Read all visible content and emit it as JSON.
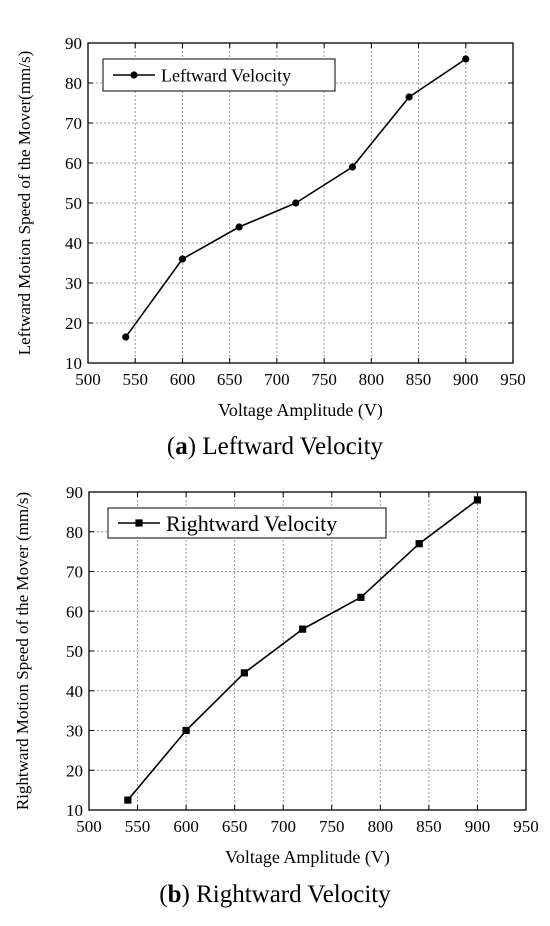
{
  "chart_data": [
    {
      "type": "line",
      "panel": "a",
      "caption": {
        "letter": "a",
        "text": " Leftward Velocity"
      },
      "xlabel": "Voltage Amplitude (V)",
      "ylabel": "Leftward Motion Speed of the Mover(mm/s)",
      "xlim": [
        500,
        950
      ],
      "ylim": [
        10,
        90
      ],
      "x_ticks": [
        500,
        550,
        600,
        650,
        700,
        750,
        800,
        850,
        900,
        950
      ],
      "y_ticks": [
        10,
        20,
        30,
        40,
        50,
        60,
        70,
        80,
        90
      ],
      "grid": true,
      "legend_position": "top-left",
      "marker": "circle",
      "series": [
        {
          "name": "Leftward Velocity",
          "x": [
            540,
            600,
            660,
            720,
            780,
            840,
            900
          ],
          "y": [
            16.5,
            36,
            44,
            50,
            59,
            76.5,
            86
          ]
        }
      ]
    },
    {
      "type": "line",
      "panel": "b",
      "caption": {
        "letter": "b",
        "text": " Rightward Velocity"
      },
      "xlabel": "Voltage Amplitude (V)",
      "ylabel": "Rightward Motion Speed of the Mover (mm/s)",
      "xlim": [
        500,
        950
      ],
      "ylim": [
        10,
        90
      ],
      "x_ticks": [
        500,
        550,
        600,
        650,
        700,
        750,
        800,
        850,
        900,
        950
      ],
      "y_ticks": [
        10,
        20,
        30,
        40,
        50,
        60,
        70,
        80,
        90
      ],
      "grid": true,
      "legend_position": "top-left",
      "marker": "square",
      "series": [
        {
          "name": "Rightward Velocity",
          "x": [
            540,
            600,
            660,
            720,
            780,
            840,
            900
          ],
          "y": [
            12.5,
            30,
            44.5,
            55.5,
            63.5,
            77,
            88
          ]
        }
      ]
    }
  ]
}
